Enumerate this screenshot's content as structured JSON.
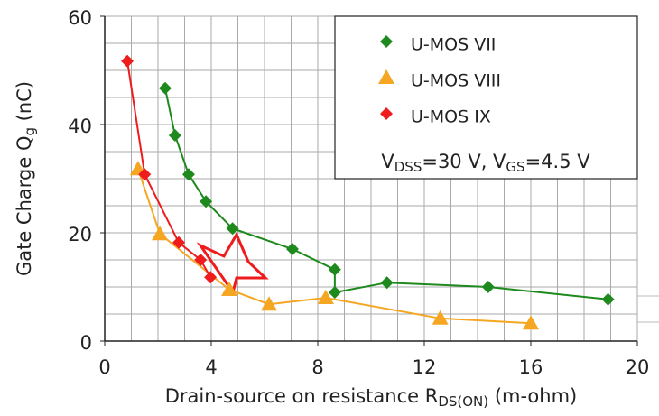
{
  "chart_data": {
    "type": "line",
    "xlabel": [
      "Drain-source on resistance R",
      "DS(ON)",
      " (m-ohm)"
    ],
    "ylabel": [
      "Gate Charge Q",
      "g",
      " (nC)"
    ],
    "annotation": [
      "V",
      "DSS",
      "=30 V, V",
      "GS",
      "=4.5 V"
    ],
    "xlim": [
      0,
      20
    ],
    "ylim": [
      0,
      60
    ],
    "xticks": [
      0,
      4,
      8,
      12,
      16,
      20
    ],
    "yticks": [
      0,
      20,
      40,
      60
    ],
    "xgrid": [
      1,
      2,
      3,
      4,
      5,
      6,
      7,
      8,
      9,
      10,
      11,
      12,
      13,
      14,
      15,
      16,
      17,
      18,
      19,
      20
    ],
    "ygrid": [
      5,
      10,
      15,
      20,
      25,
      30,
      35,
      40,
      45,
      50,
      55,
      60
    ],
    "grid": true,
    "series": [
      {
        "name": "U-MOS VII",
        "color": "#1e8a1e",
        "marker": "diamond",
        "x": [
          2.27,
          2.64,
          3.15,
          3.8,
          4.8,
          7.05,
          8.64,
          8.64,
          10.6,
          14.4,
          18.9
        ],
        "values": [
          46.7,
          38,
          30.8,
          25.8,
          20.8,
          17,
          13.2,
          9,
          10.8,
          10,
          7.7
        ]
      },
      {
        "name": "U-MOS VIII",
        "color": "#f5a623",
        "marker": "triangle",
        "x": [
          1.25,
          2.07,
          4.68,
          6.17,
          8.3,
          12.6,
          16
        ],
        "values": [
          31.8,
          19.8,
          9.5,
          6.8,
          8,
          4.2,
          3.3
        ]
      },
      {
        "name": "U-MOS IX",
        "color": "#ee1c1c",
        "marker": "diamond",
        "x": [
          0.85,
          1.5,
          2.78,
          3.6,
          3.97
        ],
        "values": [
          51.7,
          30.8,
          18.2,
          15,
          11.8
        ]
      }
    ]
  }
}
